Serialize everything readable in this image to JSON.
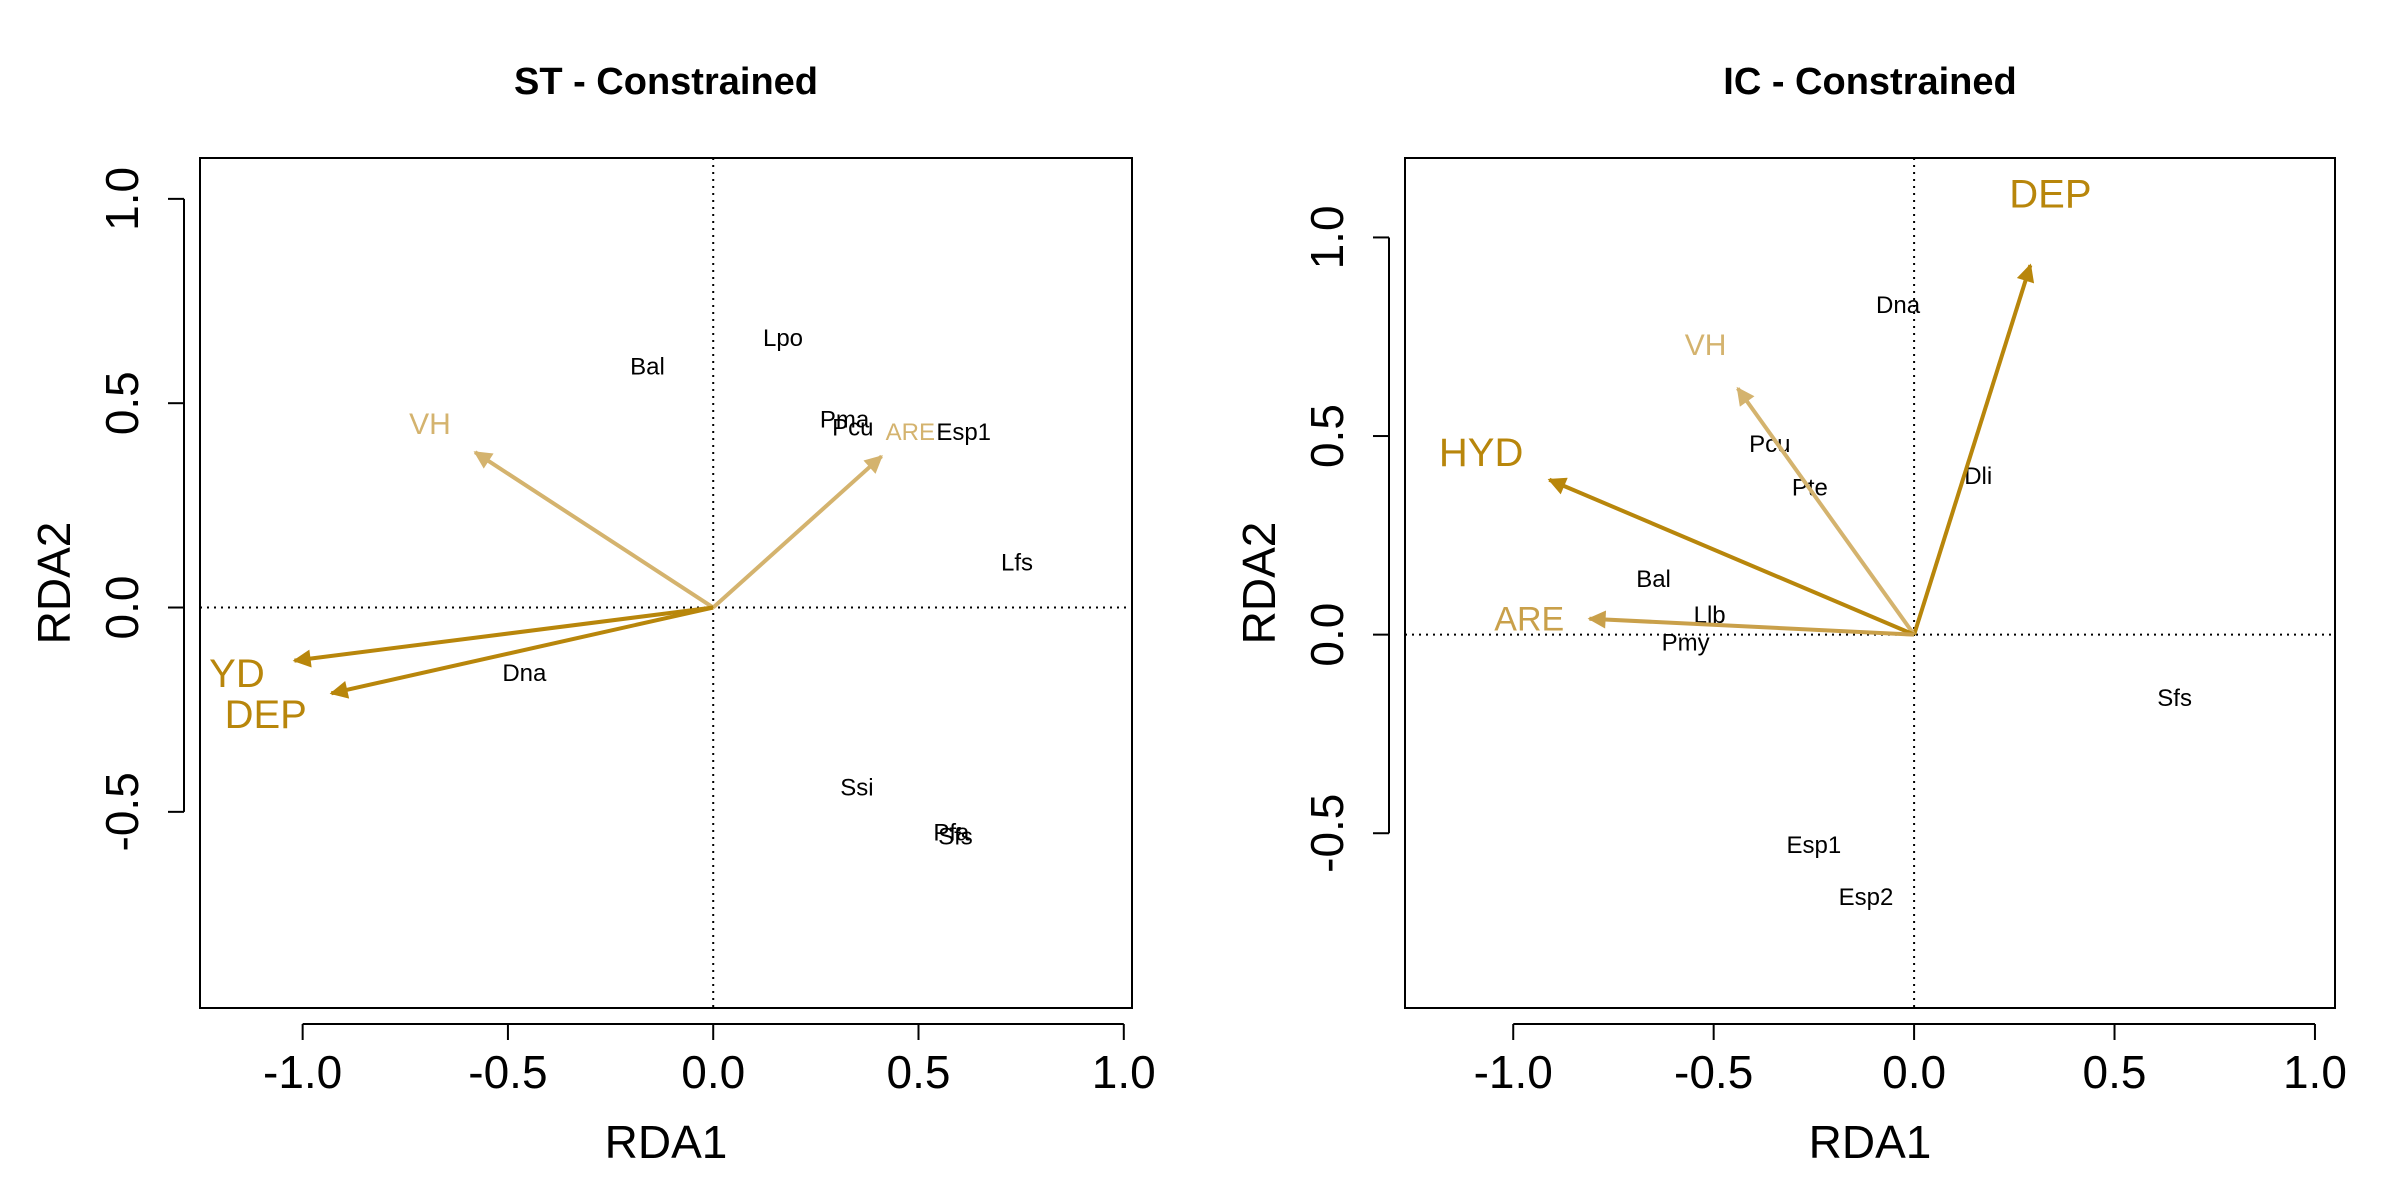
{
  "colors": {
    "arrow_dark": "#B8860B",
    "arrow_mid": "#C9A04A",
    "arrow_light": "#D4B36E",
    "text": "#000000"
  },
  "chart_data": [
    {
      "type": "scatter",
      "subtype": "rda-biplot",
      "title": "ST - Constrained",
      "xlabel": "RDA1",
      "ylabel": "RDA2",
      "xlim": [
        -1.25,
        1.02
      ],
      "ylim": [
        -0.98,
        1.1
      ],
      "xticks": [
        -1.0,
        -0.5,
        0.0,
        0.5,
        1.0
      ],
      "yticks": [
        -0.5,
        0.0,
        0.5,
        1.0
      ],
      "xtick_labels": [
        "-1.0",
        "-0.5",
        "0.0",
        "0.5",
        "1.0"
      ],
      "ytick_labels": [
        "-0.5",
        "0.0",
        "0.5",
        "1.0"
      ],
      "reference_lines": "dotted at x=0 and y=0",
      "species": [
        {
          "label": "Bal",
          "x": -0.16,
          "y": 0.59
        },
        {
          "label": "Lpo",
          "x": 0.17,
          "y": 0.66
        },
        {
          "label": "Pma",
          "x": 0.32,
          "y": 0.46
        },
        {
          "label": "Pcu",
          "x": 0.34,
          "y": 0.44
        },
        {
          "label": "Esp1",
          "x": 0.61,
          "y": 0.43
        },
        {
          "label": "Lfs",
          "x": 0.74,
          "y": 0.11
        },
        {
          "label": "Dna",
          "x": -0.46,
          "y": -0.16
        },
        {
          "label": "Ssi",
          "x": 0.35,
          "y": -0.44
        },
        {
          "label": "Pfa",
          "x": 0.58,
          "y": -0.55
        },
        {
          "label": "Sfs",
          "x": 0.59,
          "y": -0.56
        }
      ],
      "vectors": [
        {
          "label": "VH",
          "x": -0.58,
          "y": 0.38,
          "label_x": -0.69,
          "label_y": 0.45,
          "color": "#D4B36E",
          "label_size": 30
        },
        {
          "label": "ARE",
          "x": 0.41,
          "y": 0.37,
          "label_x": 0.48,
          "label_y": 0.43,
          "color": "#D4B36E",
          "label_size": 24
        },
        {
          "label": "YD",
          "x": -1.02,
          "y": -0.13,
          "label_x": -1.16,
          "label_y": -0.16,
          "color": "#B8860B",
          "label_size": 40
        },
        {
          "label": "DEP",
          "x": -0.93,
          "y": -0.21,
          "label_x": -1.09,
          "label_y": -0.26,
          "color": "#B8860B",
          "label_size": 40
        }
      ]
    },
    {
      "type": "scatter",
      "subtype": "rda-biplot",
      "title": "IC - Constrained",
      "xlabel": "RDA1",
      "ylabel": "RDA2",
      "xlim": [
        -1.27,
        1.05
      ],
      "ylim": [
        -0.94,
        1.2
      ],
      "xticks": [
        -1.0,
        -0.5,
        0.0,
        0.5,
        1.0
      ],
      "yticks": [
        -0.5,
        0.0,
        0.5,
        1.0
      ],
      "xtick_labels": [
        "-1.0",
        "-0.5",
        "0.0",
        "0.5",
        "1.0"
      ],
      "ytick_labels": [
        "-0.5",
        "0.0",
        "0.5",
        "1.0"
      ],
      "reference_lines": "dotted at x=0 and y=0",
      "species": [
        {
          "label": "Dna",
          "x": -0.04,
          "y": 0.83
        },
        {
          "label": "Pcu",
          "x": -0.36,
          "y": 0.48
        },
        {
          "label": "Pte",
          "x": -0.26,
          "y": 0.37
        },
        {
          "label": "Dli",
          "x": 0.16,
          "y": 0.4
        },
        {
          "label": "Bal",
          "x": -0.65,
          "y": 0.14
        },
        {
          "label": "Llb",
          "x": -0.51,
          "y": 0.05
        },
        {
          "label": "Pmy",
          "x": -0.57,
          "y": -0.02
        },
        {
          "label": "Sfs",
          "x": 0.65,
          "y": -0.16
        },
        {
          "label": "Esp1",
          "x": -0.25,
          "y": -0.53
        },
        {
          "label": "Esp2",
          "x": -0.12,
          "y": -0.66
        }
      ],
      "vectors": [
        {
          "label": "DEP",
          "x": 0.29,
          "y": 0.93,
          "label_x": 0.34,
          "label_y": 1.11,
          "color": "#B8860B",
          "label_size": 40
        },
        {
          "label": "VH",
          "x": -0.44,
          "y": 0.62,
          "label_x": -0.52,
          "label_y": 0.73,
          "color": "#D4B36E",
          "label_size": 30
        },
        {
          "label": "HYD",
          "x": -0.91,
          "y": 0.39,
          "label_x": -1.08,
          "label_y": 0.46,
          "color": "#B8860B",
          "label_size": 40
        },
        {
          "label": "ARE",
          "x": -0.81,
          "y": 0.04,
          "label_x": -0.96,
          "label_y": 0.04,
          "color": "#C9A04A",
          "label_size": 34
        }
      ]
    }
  ]
}
